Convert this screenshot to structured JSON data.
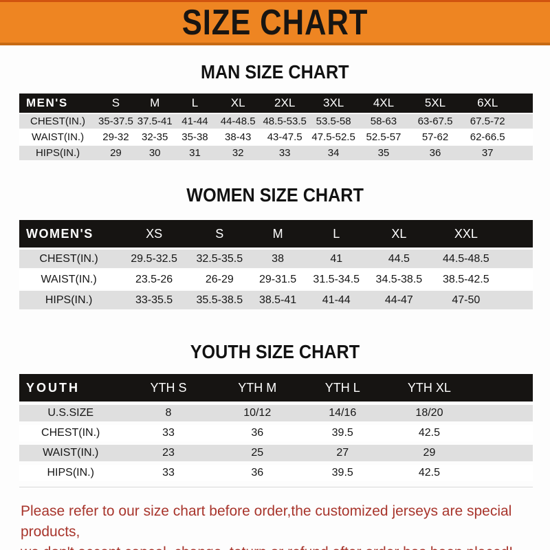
{
  "banner": {
    "title": "SIZE CHART"
  },
  "colors": {
    "orange": "#ee8522",
    "orange-edge-top": "#d1540f",
    "orange-edge-bottom": "#c76a14",
    "bar": "#161412",
    "stripe": "#dfdfdf",
    "red": "#a8352c"
  },
  "sections": [
    {
      "id": "men",
      "heading": "MAN SIZE CHART",
      "corner": "MEN'S",
      "columns": [
        "S",
        "M",
        "L",
        "XL",
        "2XL",
        "3XL",
        "4XL",
        "5XL",
        "6XL"
      ],
      "rows": [
        {
          "label": "CHEST(IN.)",
          "values": [
            "35-37.5",
            "37.5-41",
            "41-44",
            "44-48.5",
            "48.5-53.5",
            "53.5-58",
            "58-63",
            "63-67.5",
            "67.5-72"
          ]
        },
        {
          "label": "WAIST(IN.)",
          "values": [
            "29-32",
            "32-35",
            "35-38",
            "38-43",
            "43-47.5",
            "47.5-52.5",
            "52.5-57",
            "57-62",
            "62-66.5"
          ]
        },
        {
          "label": "HIPS(IN.)",
          "values": [
            "29",
            "30",
            "31",
            "32",
            "33",
            "34",
            "35",
            "36",
            "37"
          ]
        }
      ]
    },
    {
      "id": "women",
      "heading": "WOMEN SIZE CHART",
      "corner": "WOMEN'S",
      "columns": [
        "XS",
        "S",
        "M",
        "L",
        "XL",
        "XXL"
      ],
      "rows": [
        {
          "label": "CHEST(IN.)",
          "values": [
            "29.5-32.5",
            "32.5-35.5",
            "38",
            "41",
            "44.5",
            "44.5-48.5"
          ]
        },
        {
          "label": "WAIST(IN.)",
          "values": [
            "23.5-26",
            "26-29",
            "29-31.5",
            "31.5-34.5",
            "34.5-38.5",
            "38.5-42.5"
          ]
        },
        {
          "label": "HIPS(IN.)",
          "values": [
            "33-35.5",
            "35.5-38.5",
            "38.5-41",
            "41-44",
            "44-47",
            "47-50"
          ]
        }
      ]
    },
    {
      "id": "youth",
      "heading": "YOUTH SIZE CHART",
      "corner": "YOUTH",
      "columns": [
        "YTH S",
        "YTH M",
        "YTH L",
        "YTH XL"
      ],
      "rows": [
        {
          "label": "U.S.SIZE",
          "values": [
            "8",
            "10/12",
            "14/16",
            "18/20"
          ]
        },
        {
          "label": "CHEST(IN.)",
          "values": [
            "33",
            "36",
            "39.5",
            "42.5"
          ]
        },
        {
          "label": "WAIST(IN.)",
          "values": [
            "23",
            "25",
            "27",
            "29"
          ]
        },
        {
          "label": "HIPS(IN.)",
          "values": [
            "33",
            "36",
            "39.5",
            "42.5"
          ]
        }
      ]
    }
  ],
  "footer": {
    "line1": "Please refer to our size chart before order,the customized jerseys are special products,",
    "line2": "we don't accept cancel, change, teturn or refund after order has been placed!"
  }
}
